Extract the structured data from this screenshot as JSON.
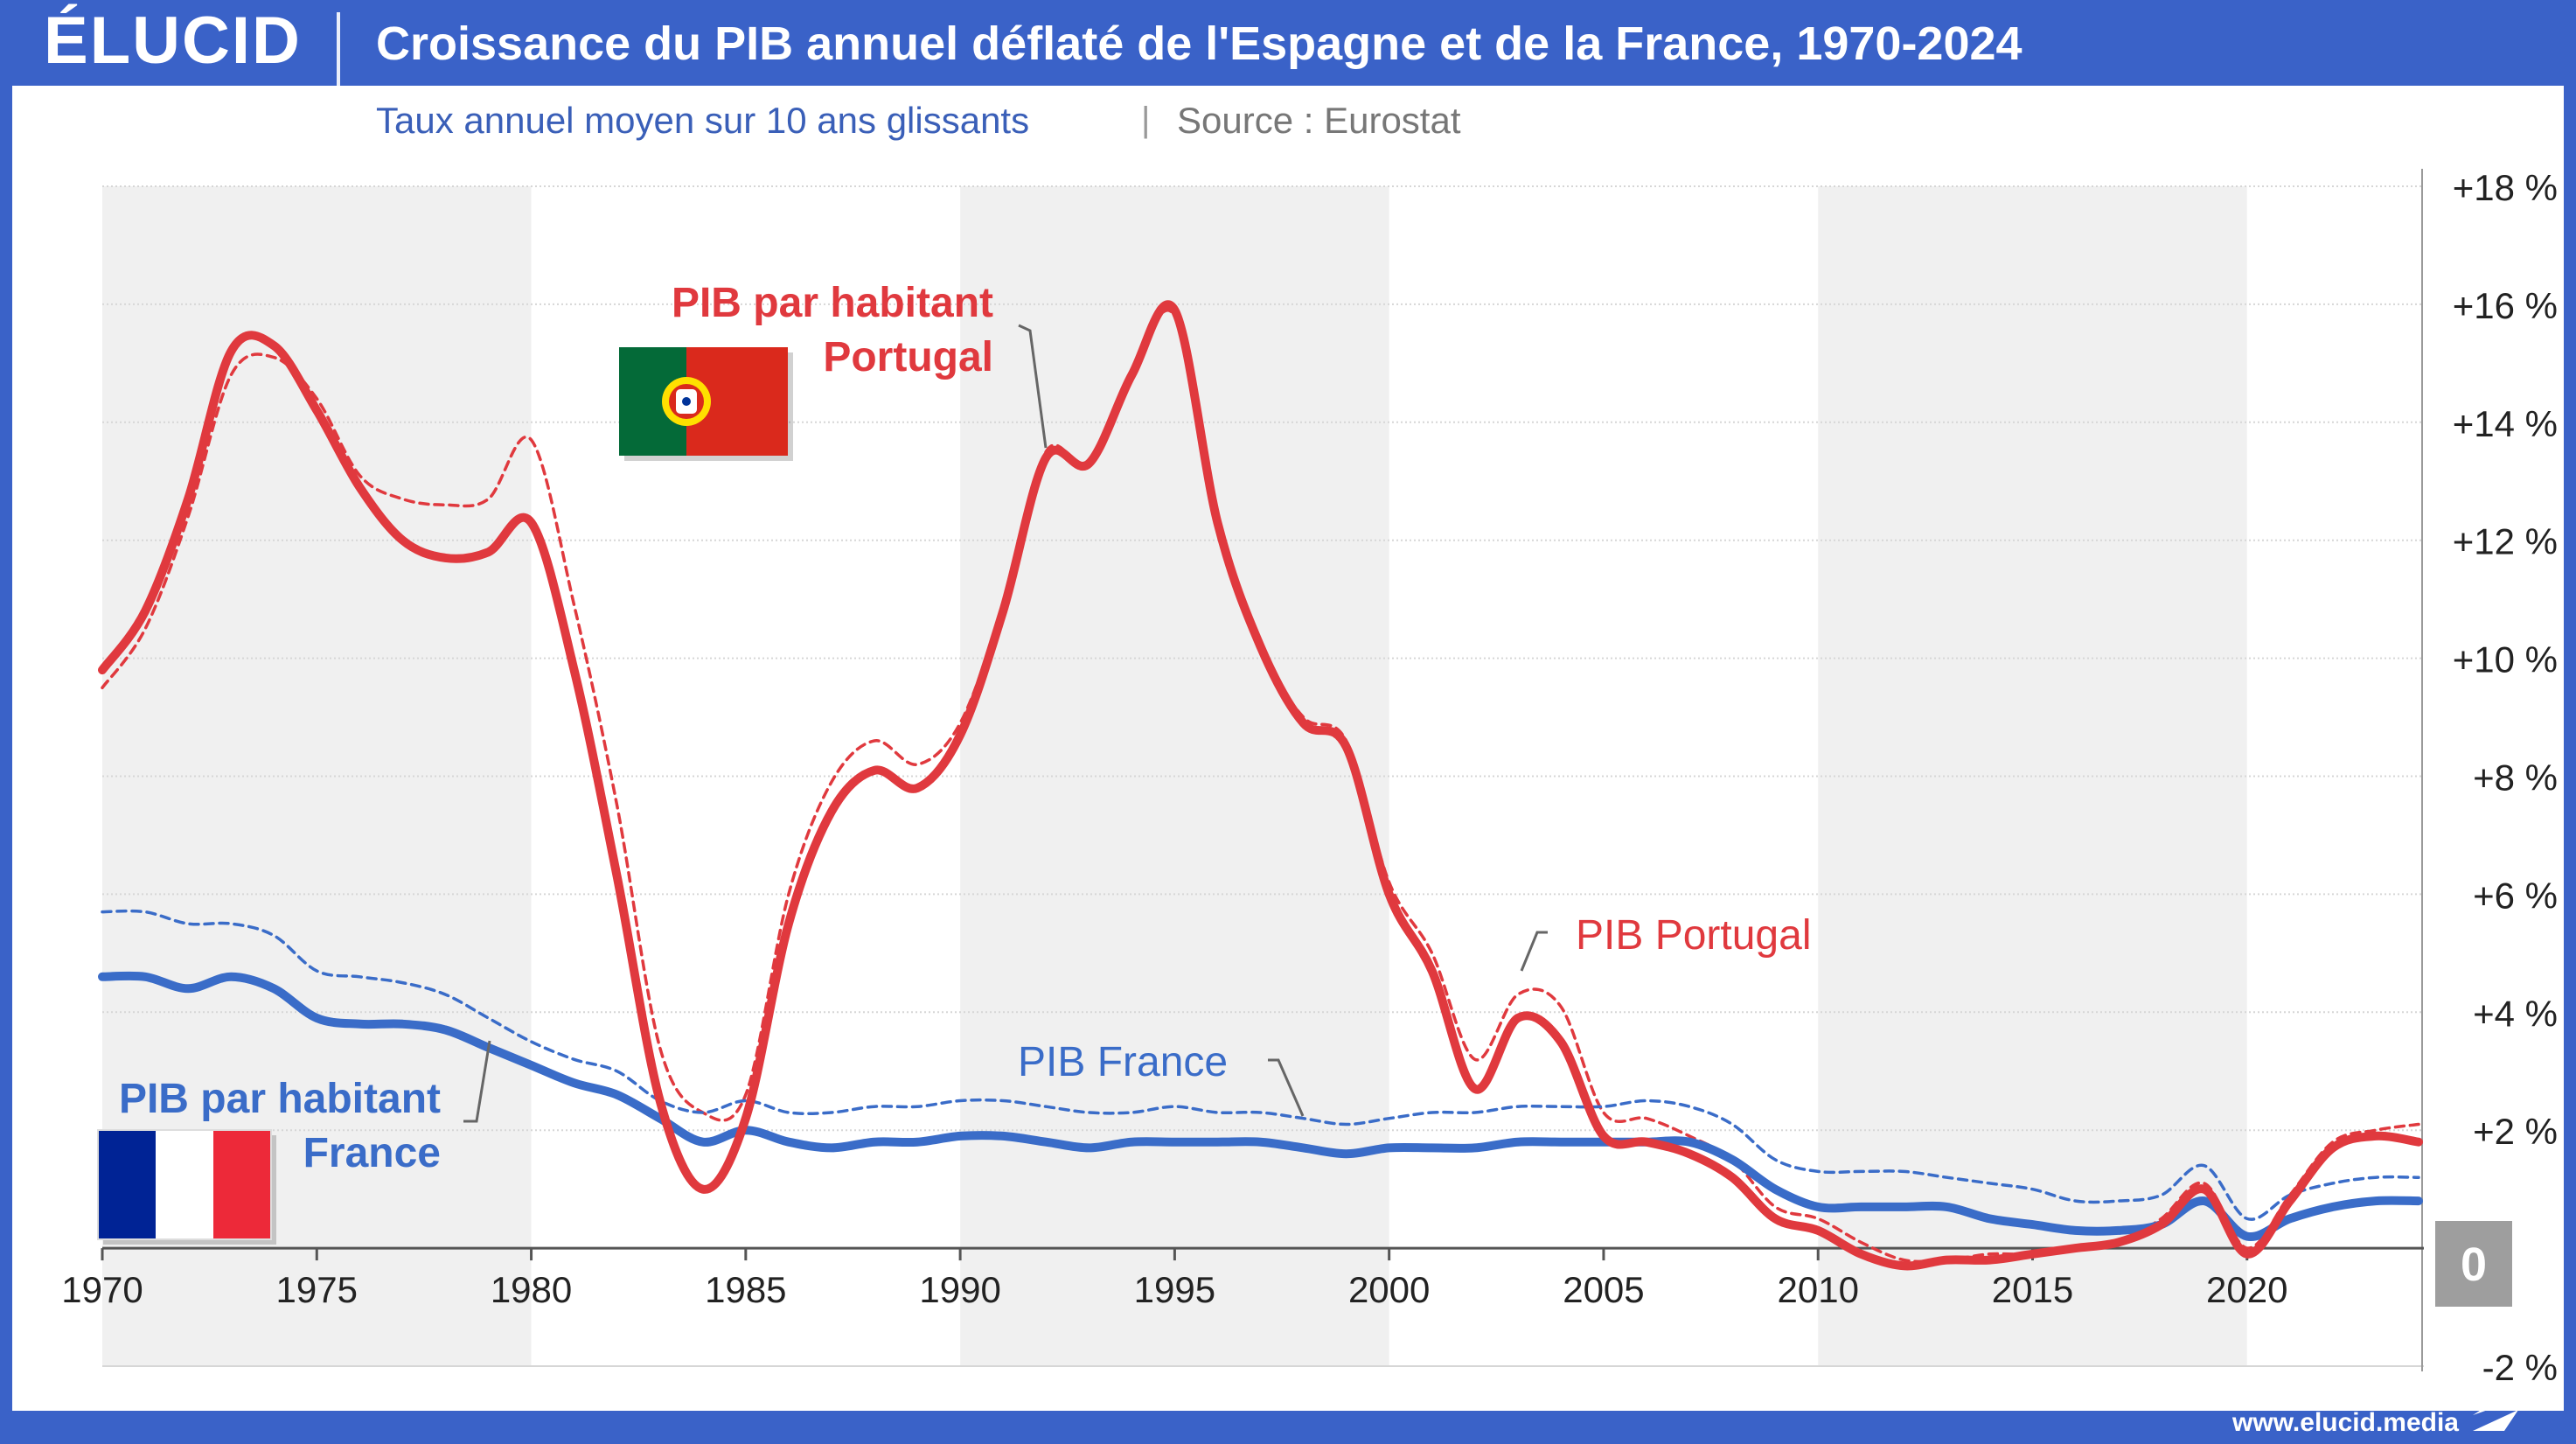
{
  "header": {
    "logo": "ÉLUCID",
    "title": "Croissance du PIB annuel déflaté de l'Espagne et de la France, 1970-2024",
    "subtitle": "Taux annuel moyen sur 10 ans glissants",
    "separator": "|",
    "source": "Source : Eurostat"
  },
  "footer": {
    "url": "www.elucid.media"
  },
  "colors": {
    "frame": "#3a62c8",
    "portugal": "#e0393e",
    "france": "#3a6cc8",
    "band": "#f0f0f0",
    "zero_box": "#9e9e9e"
  },
  "annotations": {
    "pt_pc_line1": "PIB par habitant",
    "pt_pc_line2": "Portugal",
    "pt_gdp": "PIB Portugal",
    "fr_gdp": "PIB France",
    "fr_pc_line1": "PIB par habitant",
    "fr_pc_line2": "France",
    "zero_badge": "0",
    "flag_portugal": "portugal-flag",
    "flag_france": "france-flag"
  },
  "chart_data": {
    "type": "line",
    "title": "Croissance du PIB annuel déflaté de l'Espagne et de la France, 1970-2024",
    "subtitle": "Taux annuel moyen sur 10 ans glissants",
    "xlim": [
      1970,
      2024
    ],
    "ylim": [
      -2,
      18
    ],
    "x_ticks": [
      1970,
      1975,
      1980,
      1985,
      1990,
      1995,
      2000,
      2005,
      2010,
      2015,
      2020
    ],
    "y_ticks": [
      {
        "value": 18,
        "label": "+18 %"
      },
      {
        "value": 16,
        "label": "+16 %"
      },
      {
        "value": 14,
        "label": "+14 %"
      },
      {
        "value": 12,
        "label": "+12 %"
      },
      {
        "value": 10,
        "label": "+10 %"
      },
      {
        "value": 8,
        "label": "+8 %"
      },
      {
        "value": 6,
        "label": "+6 %"
      },
      {
        "value": 4,
        "label": "+4 %"
      },
      {
        "value": 2,
        "label": "+2 %"
      },
      {
        "value": -2,
        "label": "-2 %"
      }
    ],
    "zero_label": "0",
    "shaded_bands": [
      [
        1970,
        1980
      ],
      [
        1990,
        2000
      ],
      [
        2010,
        2020
      ]
    ],
    "grid": true,
    "series": [
      {
        "name": "PIB par habitant Portugal",
        "color": "#e0393e",
        "style": "solid",
        "x": [
          1970,
          1971,
          1972,
          1973,
          1974,
          1975,
          1976,
          1977,
          1978,
          1979,
          1980,
          1981,
          1982,
          1983,
          1984,
          1985,
          1986,
          1987,
          1988,
          1989,
          1990,
          1991,
          1992,
          1993,
          1994,
          1995,
          1996,
          1997,
          1998,
          1999,
          2000,
          2001,
          2002,
          2003,
          2004,
          2005,
          2006,
          2007,
          2008,
          2009,
          2010,
          2011,
          2012,
          2013,
          2014,
          2015,
          2016,
          2017,
          2018,
          2019,
          2020,
          2021,
          2022,
          2023,
          2024
        ],
        "y": [
          9.8,
          10.8,
          12.7,
          15.2,
          15.3,
          14.2,
          12.9,
          12.0,
          11.7,
          11.8,
          12.3,
          9.8,
          6.3,
          2.5,
          1.0,
          2.2,
          5.5,
          7.4,
          8.1,
          7.8,
          8.7,
          10.8,
          13.4,
          13.3,
          14.8,
          15.9,
          12.3,
          10.2,
          8.9,
          8.5,
          6.0,
          4.7,
          2.7,
          3.9,
          3.5,
          1.9,
          1.8,
          1.6,
          1.2,
          0.5,
          0.3,
          -0.1,
          -0.3,
          -0.2,
          -0.2,
          -0.1,
          0.0,
          0.1,
          0.4,
          1.0,
          -0.1,
          0.8,
          1.7,
          1.9,
          1.8
        ]
      },
      {
        "name": "PIB Portugal",
        "color": "#e0393e",
        "style": "dashed",
        "x": [
          1970,
          1971,
          1972,
          1973,
          1974,
          1975,
          1976,
          1977,
          1978,
          1979,
          1980,
          1981,
          1982,
          1983,
          1984,
          1985,
          1986,
          1987,
          1988,
          1989,
          1990,
          1991,
          1992,
          1993,
          1994,
          1995,
          1996,
          1997,
          1998,
          1999,
          2000,
          2001,
          2002,
          2003,
          2004,
          2005,
          2006,
          2007,
          2008,
          2009,
          2010,
          2011,
          2012,
          2013,
          2014,
          2015,
          2016,
          2017,
          2018,
          2019,
          2020,
          2021,
          2022,
          2023,
          2024
        ],
        "y": [
          9.5,
          10.5,
          12.4,
          14.8,
          15.1,
          14.4,
          13.1,
          12.7,
          12.6,
          12.7,
          13.7,
          10.9,
          7.5,
          3.4,
          2.3,
          2.6,
          6.0,
          7.9,
          8.6,
          8.2,
          8.9,
          10.9,
          13.5,
          13.3,
          14.8,
          15.8,
          12.3,
          10.2,
          9.0,
          8.6,
          6.2,
          5.0,
          3.2,
          4.3,
          4.1,
          2.3,
          2.2,
          1.9,
          1.5,
          0.7,
          0.5,
          0.1,
          -0.2,
          -0.2,
          -0.1,
          -0.1,
          0.0,
          0.1,
          0.5,
          1.1,
          0.0,
          0.9,
          1.8,
          2.0,
          2.1
        ]
      },
      {
        "name": "PIB par habitant France",
        "color": "#3a6cc8",
        "style": "solid",
        "x": [
          1970,
          1971,
          1972,
          1973,
          1974,
          1975,
          1976,
          1977,
          1978,
          1979,
          1980,
          1981,
          1982,
          1983,
          1984,
          1985,
          1986,
          1987,
          1988,
          1989,
          1990,
          1991,
          1992,
          1993,
          1994,
          1995,
          1996,
          1997,
          1998,
          1999,
          2000,
          2001,
          2002,
          2003,
          2004,
          2005,
          2006,
          2007,
          2008,
          2009,
          2010,
          2011,
          2012,
          2013,
          2014,
          2015,
          2016,
          2017,
          2018,
          2019,
          2020,
          2021,
          2022,
          2023,
          2024
        ],
        "y": [
          4.6,
          4.6,
          4.4,
          4.6,
          4.4,
          3.9,
          3.8,
          3.8,
          3.7,
          3.4,
          3.1,
          2.8,
          2.6,
          2.2,
          1.8,
          2.0,
          1.8,
          1.7,
          1.8,
          1.8,
          1.9,
          1.9,
          1.8,
          1.7,
          1.8,
          1.8,
          1.8,
          1.8,
          1.7,
          1.6,
          1.7,
          1.7,
          1.7,
          1.8,
          1.8,
          1.8,
          1.8,
          1.8,
          1.5,
          1.0,
          0.7,
          0.7,
          0.7,
          0.7,
          0.5,
          0.4,
          0.3,
          0.3,
          0.4,
          0.8,
          0.2,
          0.5,
          0.7,
          0.8,
          0.8
        ]
      },
      {
        "name": "PIB France",
        "color": "#3a6cc8",
        "style": "dashed",
        "x": [
          1970,
          1971,
          1972,
          1973,
          1974,
          1975,
          1976,
          1977,
          1978,
          1979,
          1980,
          1981,
          1982,
          1983,
          1984,
          1985,
          1986,
          1987,
          1988,
          1989,
          1990,
          1991,
          1992,
          1993,
          1994,
          1995,
          1996,
          1997,
          1998,
          1999,
          2000,
          2001,
          2002,
          2003,
          2004,
          2005,
          2006,
          2007,
          2008,
          2009,
          2010,
          2011,
          2012,
          2013,
          2014,
          2015,
          2016,
          2017,
          2018,
          2019,
          2020,
          2021,
          2022,
          2023,
          2024
        ],
        "y": [
          5.7,
          5.7,
          5.5,
          5.5,
          5.3,
          4.7,
          4.6,
          4.5,
          4.3,
          3.9,
          3.5,
          3.2,
          3.0,
          2.5,
          2.3,
          2.5,
          2.3,
          2.3,
          2.4,
          2.4,
          2.5,
          2.5,
          2.4,
          2.3,
          2.3,
          2.4,
          2.3,
          2.3,
          2.2,
          2.1,
          2.2,
          2.3,
          2.3,
          2.4,
          2.4,
          2.4,
          2.5,
          2.4,
          2.1,
          1.5,
          1.3,
          1.3,
          1.3,
          1.2,
          1.1,
          1.0,
          0.8,
          0.8,
          0.9,
          1.4,
          0.5,
          0.9,
          1.1,
          1.2,
          1.2
        ]
      }
    ]
  }
}
